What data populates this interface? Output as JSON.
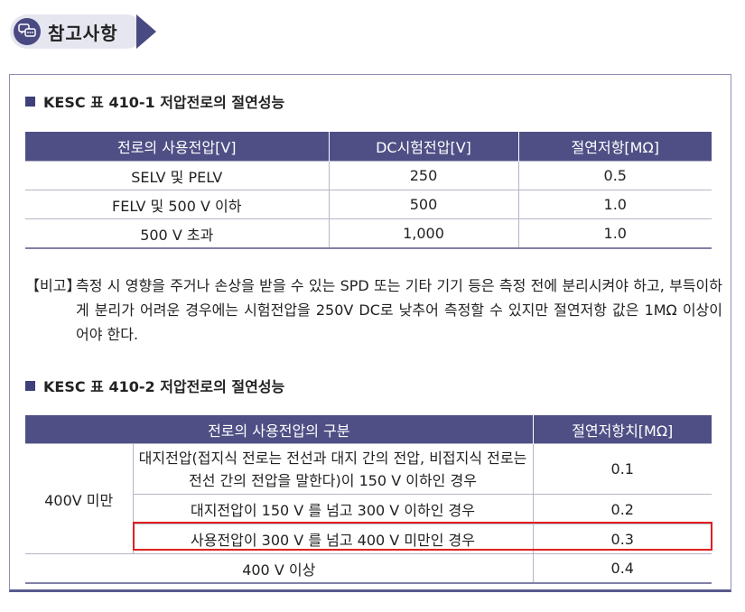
{
  "header": {
    "title": "참고사항",
    "icon": "chat-bubbles-icon"
  },
  "section1": {
    "title": "KESC 표 410-1 저압전로의 절연성능",
    "columns": [
      "전로의 사용전압[V]",
      "DC시험전압[V]",
      "절연저항[MΩ]"
    ],
    "rows": [
      [
        "SELV 및 PELV",
        "250",
        "0.5"
      ],
      [
        "FELV 및 500 V 이하",
        "500",
        "1.0"
      ],
      [
        "500 V 초과",
        "1,000",
        "1.0"
      ]
    ]
  },
  "note": {
    "label": "【비고】",
    "text": "측정 시 영향을 주거나 손상을 받을 수 있는 SPD 또는 기타 기기 등은 측정 전에 분리시켜야 하고, 부득이하게 분리가 어려운 경우에는 시험전압을 250V DC로 낮추어 측정할 수 있지만 절연저항 값은 1MΩ 이상이어야 한다."
  },
  "section2": {
    "title": "KESC 표 410-2 저압전로의 절연성능",
    "columns": [
      "전로의 사용전압의 구분",
      "절연저항치[MΩ]"
    ],
    "group_label": "400V 미만",
    "rows": [
      {
        "condition": "대지전압(접지식 전로는 전선과 대지 간의 전압, 비접지식 전로는 전선 간의 전압을 말한다)이 150 V 이하인 경우",
        "value": "0.1"
      },
      {
        "condition": "대지전압이 150 V 를 넘고 300 V 이하인 경우",
        "value": "0.2"
      },
      {
        "condition": "사용전압이 300 V 를 넘고 400 V 미만인 경우",
        "value": "0.3",
        "highlighted": true
      }
    ],
    "last_row": {
      "condition": "400 V 이상",
      "value": "0.4"
    }
  },
  "colors": {
    "header_fill": "#4f4f86",
    "highlight": "#e02020"
  }
}
